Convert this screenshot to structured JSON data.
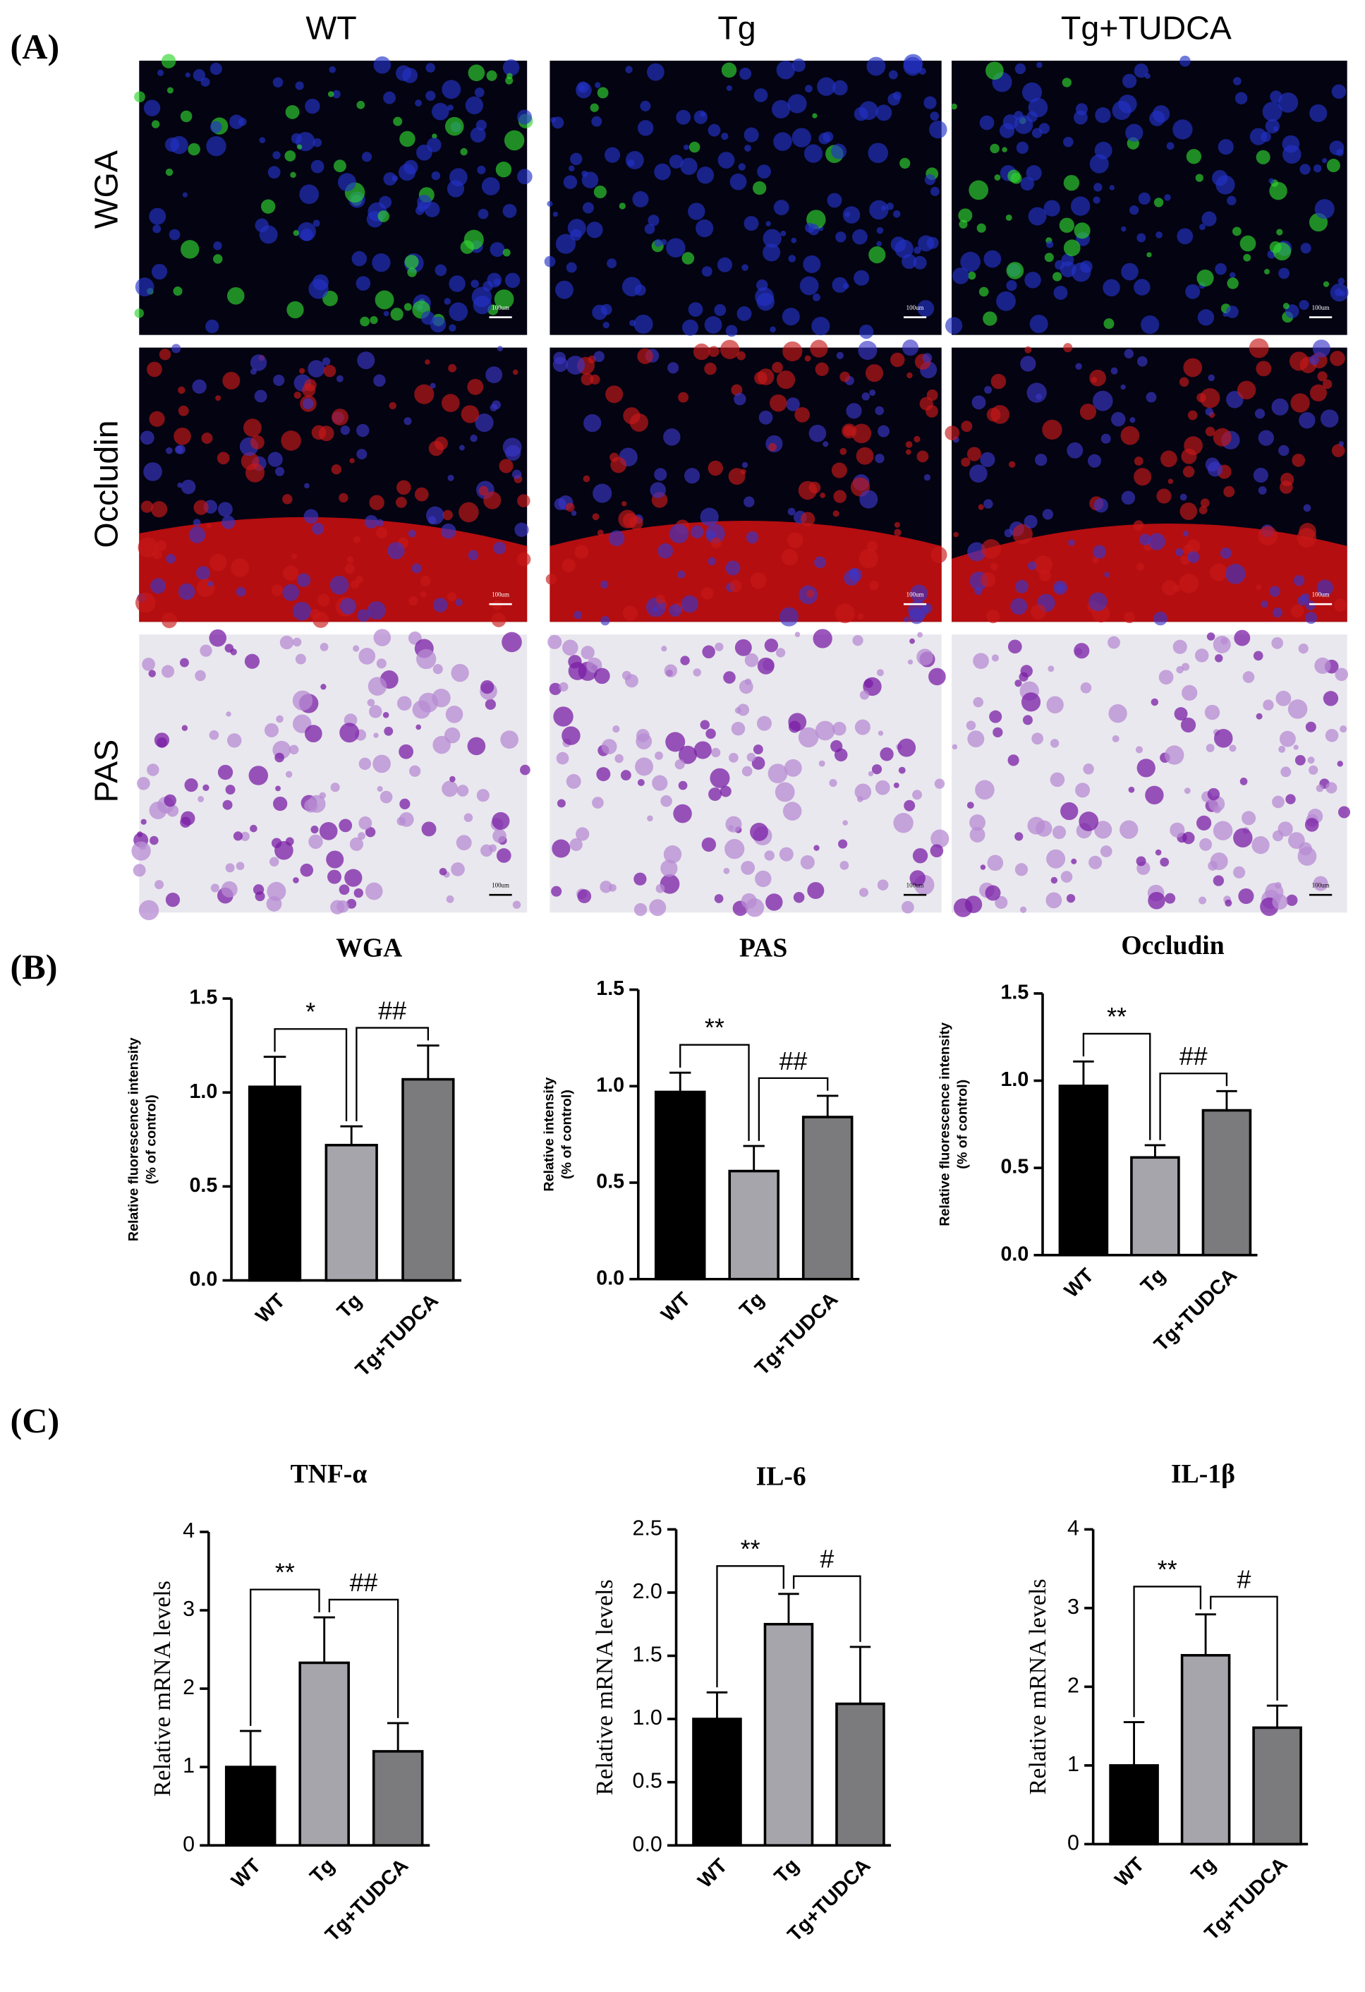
{
  "panel_a": {
    "label": "(A)",
    "columns": [
      "WT",
      "Tg",
      "Tg+TUDCA"
    ],
    "rows": [
      "WGA",
      "Occludin",
      "PAS"
    ],
    "scale_bar": "100um"
  },
  "panel_b": {
    "label": "(B)"
  },
  "panel_c": {
    "label": "(C)"
  },
  "chart_data": [
    {
      "type": "bar",
      "title": "WGA",
      "ylabel": [
        "Relative fluorescence intensity",
        "(% of control)"
      ],
      "categories": [
        "WT",
        "Tg",
        "Tg+TUDCA"
      ],
      "values": [
        1.03,
        0.72,
        1.07
      ],
      "errors": [
        0.16,
        0.1,
        0.18
      ],
      "colors": [
        "#000000",
        "#a5a5ab",
        "#7b7b7d"
      ],
      "annotations": [
        "*",
        "##"
      ],
      "ylim": [
        0,
        1.5
      ],
      "yticks": [
        {
          "value": 0,
          "label": "0.0"
        },
        0.5,
        {
          "value": 1,
          "label": "1.0"
        },
        1.5
      ]
    },
    {
      "type": "bar",
      "title": "PAS",
      "ylabel": [
        "Relative  intensity",
        "(% of control)"
      ],
      "categories": [
        "WT",
        "Tg",
        "Tg+TUDCA"
      ],
      "values": [
        0.97,
        0.56,
        0.84
      ],
      "errors": [
        0.1,
        0.13,
        0.11
      ],
      "colors": [
        "#000000",
        "#a5a5ab",
        "#7b7b7d"
      ],
      "annotations": [
        "**",
        "##"
      ],
      "ylim": [
        0,
        1.5
      ],
      "yticks": [
        {
          "value": 0,
          "label": "0.0"
        },
        0.5,
        {
          "value": 1,
          "label": "1.0"
        },
        1.5
      ]
    },
    {
      "type": "bar",
      "title": "Occludin",
      "ylabel": [
        "Relative fluorescence intensity",
        "(% of control)"
      ],
      "categories": [
        "WT",
        "Tg",
        "Tg+TUDCA"
      ],
      "values": [
        0.97,
        0.56,
        0.83
      ],
      "errors": [
        0.14,
        0.07,
        0.11
      ],
      "colors": [
        "#000000",
        "#a5a5ab",
        "#7b7b7d"
      ],
      "annotations": [
        "**",
        "##"
      ],
      "ylim": [
        0,
        1.5
      ],
      "yticks": [
        {
          "value": 0,
          "label": "0.0"
        },
        0.5,
        {
          "value": 1,
          "label": "1.0"
        },
        1.5
      ]
    },
    {
      "type": "bar",
      "title": "TNF-α",
      "ylabel": [
        "Relative mRNA levels"
      ],
      "categories": [
        "WT",
        "Tg",
        "Tg+TUDCA"
      ],
      "values": [
        1.0,
        2.33,
        1.2
      ],
      "errors": [
        0.46,
        0.58,
        0.36
      ],
      "colors": [
        "#000000",
        "#a5a5ab",
        "#7b7b7d"
      ],
      "annotations": [
        "**",
        "##"
      ],
      "ylim": [
        0,
        4
      ],
      "yticks": [
        0,
        1,
        2,
        3,
        4
      ]
    },
    {
      "type": "bar",
      "title": "IL-6",
      "ylabel": [
        "Relative mRNA levels"
      ],
      "categories": [
        "WT",
        "Tg",
        "Tg+TUDCA"
      ],
      "values": [
        1.0,
        1.75,
        1.12
      ],
      "errors": [
        0.21,
        0.24,
        0.45
      ],
      "colors": [
        "#000000",
        "#a5a5ab",
        "#7b7b7d"
      ],
      "annotations": [
        "**",
        "#"
      ],
      "ylim": [
        0,
        2.5
      ],
      "yticks": [
        {
          "value": 0,
          "label": "0.0"
        },
        0.5,
        {
          "value": 1,
          "label": "1.0"
        },
        1.5,
        {
          "value": 2,
          "label": "2.0"
        },
        2.5
      ]
    },
    {
      "type": "bar",
      "title": "IL-1β",
      "ylabel": [
        "Relative mRNA levels"
      ],
      "categories": [
        "WT",
        "Tg",
        "Tg+TUDCA"
      ],
      "values": [
        1.0,
        2.4,
        1.48
      ],
      "errors": [
        0.55,
        0.52,
        0.28
      ],
      "colors": [
        "#000000",
        "#a5a5ab",
        "#7b7b7d"
      ],
      "annotations": [
        "**",
        "#"
      ],
      "ylim": [
        0,
        4
      ],
      "yticks": [
        0,
        1,
        2,
        3,
        4
      ]
    }
  ]
}
